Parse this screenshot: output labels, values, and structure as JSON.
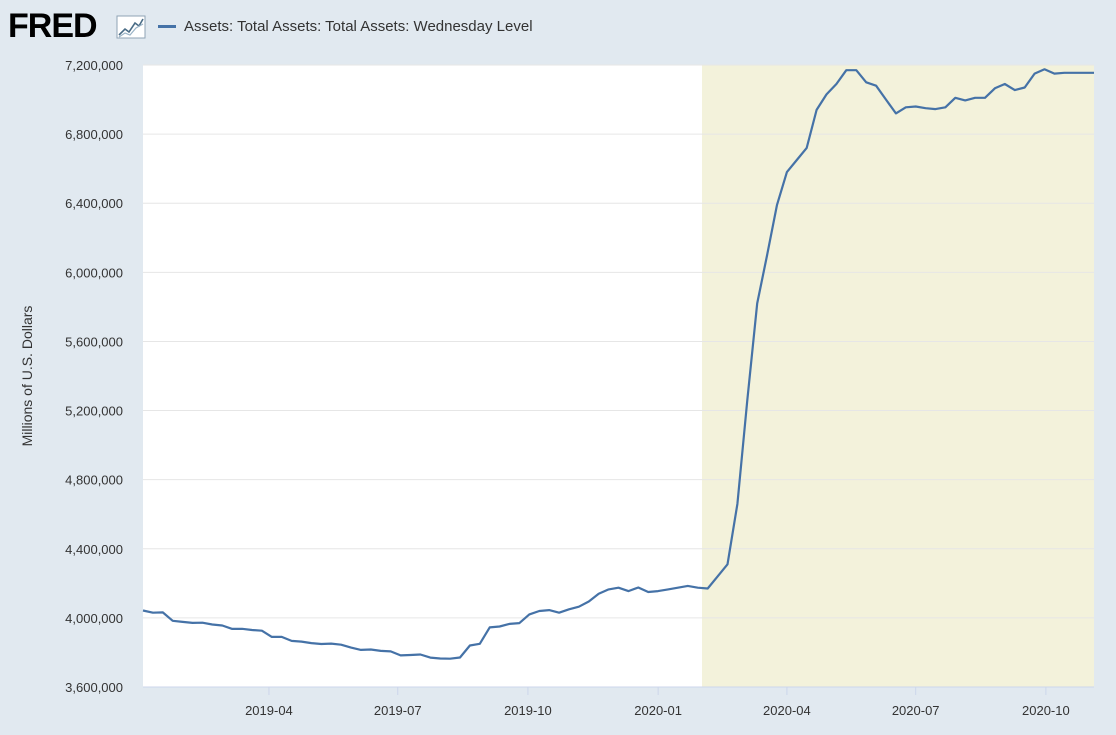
{
  "logo": {
    "text": "FRED",
    "icon": "fred-chart-logo-icon"
  },
  "chart_data": {
    "type": "line",
    "title": "",
    "ylabel": "Millions of U.S. Dollars",
    "xlabel": "",
    "ylim": [
      3600000,
      7200000
    ],
    "xlim": [
      "2019-01-02",
      "2020-11-04"
    ],
    "y_ticks": [
      3600000,
      4000000,
      4400000,
      4800000,
      5200000,
      5600000,
      6000000,
      6400000,
      6800000,
      7200000
    ],
    "y_tick_labels": [
      "3,600,000",
      "4,000,000",
      "4,400,000",
      "4,800,000",
      "5,200,000",
      "5,600,000",
      "6,000,000",
      "6,400,000",
      "6,800,000",
      "7,200,000"
    ],
    "x_ticks": [
      "2019-04-01",
      "2019-07-01",
      "2019-10-01",
      "2020-01-01",
      "2020-04-01",
      "2020-07-01",
      "2020-10-01"
    ],
    "x_tick_labels": [
      "2019-04",
      "2019-07",
      "2019-10",
      "2020-01",
      "2020-04",
      "2020-07",
      "2020-10"
    ],
    "grid": true,
    "legend_position": "top-left",
    "recession_shading": {
      "start": "2020-02-01",
      "end": "2020-11-04",
      "color": "#f3f2db"
    },
    "series": [
      {
        "name": "Assets: Total Assets: Total Assets: Wednesday Level",
        "color": "#4572a7",
        "x": [
          "2019-01-02",
          "2019-01-09",
          "2019-01-16",
          "2019-01-23",
          "2019-01-30",
          "2019-02-06",
          "2019-02-13",
          "2019-02-20",
          "2019-02-27",
          "2019-03-06",
          "2019-03-13",
          "2019-03-20",
          "2019-03-27",
          "2019-04-03",
          "2019-04-10",
          "2019-04-17",
          "2019-04-24",
          "2019-05-01",
          "2019-05-08",
          "2019-05-15",
          "2019-05-22",
          "2019-05-29",
          "2019-06-05",
          "2019-06-12",
          "2019-06-19",
          "2019-06-26",
          "2019-07-03",
          "2019-07-10",
          "2019-07-17",
          "2019-07-24",
          "2019-07-31",
          "2019-08-07",
          "2019-08-14",
          "2019-08-21",
          "2019-08-28",
          "2019-09-04",
          "2019-09-11",
          "2019-09-18",
          "2019-09-25",
          "2019-10-02",
          "2019-10-09",
          "2019-10-16",
          "2019-10-23",
          "2019-10-30",
          "2019-11-06",
          "2019-11-13",
          "2019-11-20",
          "2019-11-27",
          "2019-12-04",
          "2019-12-11",
          "2019-12-18",
          "2019-12-25",
          "2020-01-01",
          "2020-01-08",
          "2020-01-15",
          "2020-01-22",
          "2020-01-29",
          "2020-02-05",
          "2020-02-12",
          "2020-02-19",
          "2020-02-26",
          "2020-03-04",
          "2020-03-11",
          "2020-03-18",
          "2020-03-25",
          "2020-04-01",
          "2020-04-08",
          "2020-04-15",
          "2020-04-22",
          "2020-04-29",
          "2020-05-06",
          "2020-05-13",
          "2020-05-20",
          "2020-05-27",
          "2020-06-03",
          "2020-06-10",
          "2020-06-17",
          "2020-06-24",
          "2020-07-01",
          "2020-07-08",
          "2020-07-15",
          "2020-07-22",
          "2020-07-29",
          "2020-08-05",
          "2020-08-12",
          "2020-08-19",
          "2020-08-26",
          "2020-09-02",
          "2020-09-09",
          "2020-09-16",
          "2020-09-23",
          "2020-09-30",
          "2020-10-07",
          "2020-10-14",
          "2020-10-21",
          "2020-10-28",
          "2020-11-04"
        ],
        "y": [
          4043000,
          4030000,
          4032000,
          3983000,
          3977000,
          3971000,
          3972000,
          3962000,
          3956000,
          3936000,
          3937000,
          3930000,
          3926000,
          3890000,
          3890000,
          3867000,
          3863000,
          3854000,
          3849000,
          3851000,
          3845000,
          3828000,
          3815000,
          3817000,
          3809000,
          3806000,
          3783000,
          3785000,
          3788000,
          3770000,
          3765000,
          3764000,
          3771000,
          3840000,
          3850000,
          3945000,
          3950000,
          3965000,
          3970000,
          4020000,
          4040000,
          4045000,
          4030000,
          4050000,
          4065000,
          4095000,
          4140000,
          4165000,
          4175000,
          4155000,
          4176000,
          4150000,
          4155000,
          4165000,
          4175000,
          4185000,
          4175000,
          4170000,
          4240000,
          4310000,
          4660000,
          5260000,
          5820000,
          6100000,
          6390000,
          6580000,
          6650000,
          6720000,
          6940000,
          7030000,
          7090000,
          7170000,
          7170000,
          7100000,
          7080000,
          7000000,
          6920000,
          6955000,
          6960000,
          6950000,
          6945000,
          6955000,
          7010000,
          6995000,
          7010000,
          7010000,
          7065000,
          7090000,
          7055000,
          7070000,
          7150000,
          7175000,
          7150000,
          7155000,
          7155000,
          7155000,
          7155000
        ]
      }
    ]
  }
}
